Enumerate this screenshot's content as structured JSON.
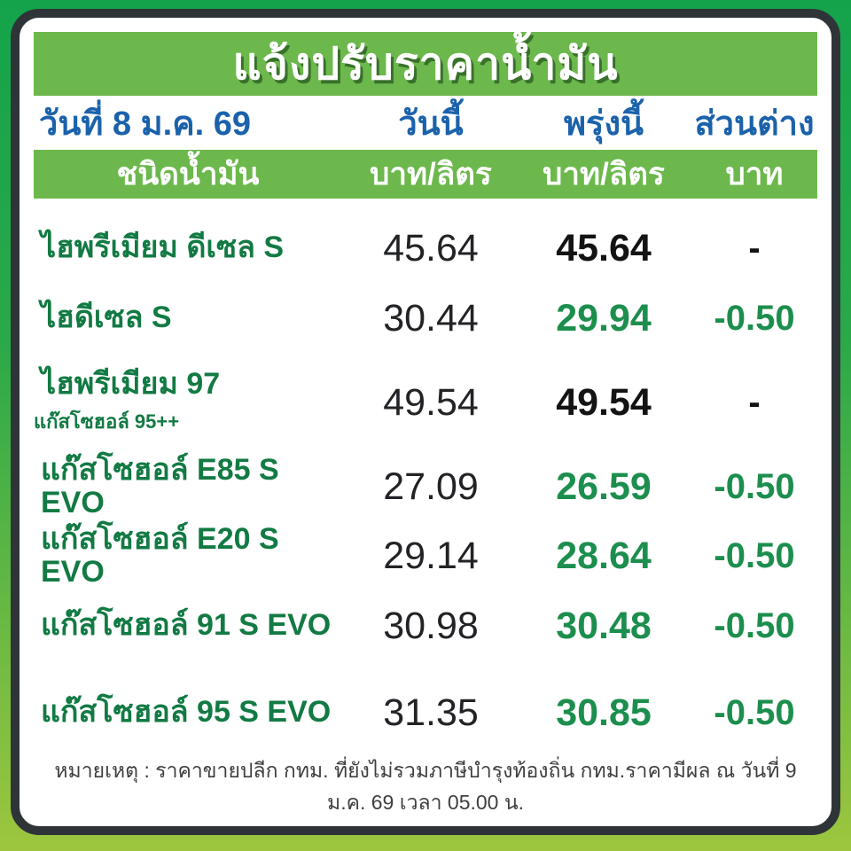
{
  "header": {
    "title": "แจ้งปรับราคาน้ำมัน",
    "date_label": "วันที่ 8 ม.ค. 69",
    "col_today": "วันนี้",
    "col_tomorrow": "พรุ่งนี้",
    "col_diff": "ส่วนต่าง"
  },
  "subheader": {
    "fuel_type": "ชนิดน้ำมัน",
    "unit_today": "บาท/ลิตร",
    "unit_tomorrow": "บาท/ลิตร",
    "unit_diff": "บาท"
  },
  "table": {
    "rows": [
      {
        "name": "ไฮพรีเมียม ดีเซล S",
        "today": "45.64",
        "tomorrow": "45.64",
        "diff": "-",
        "changed": false
      },
      {
        "name": "ไฮดีเซล S",
        "today": "30.44",
        "tomorrow": "29.94",
        "diff": "-0.50",
        "changed": true
      },
      {
        "name": "ไฮพรีเมียม 97",
        "sub": "แก๊สโซฮอล์ 95++",
        "today": "49.54",
        "tomorrow": "49.54",
        "diff": "-",
        "changed": false
      },
      {
        "name": "แก๊สโซฮอล์ E85 S EVO",
        "today": "27.09",
        "tomorrow": "26.59",
        "diff": "-0.50",
        "changed": true
      },
      {
        "name": "แก๊สโซฮอล์ E20 S EVO",
        "today": "29.14",
        "tomorrow": "28.64",
        "diff": "-0.50",
        "changed": true
      },
      {
        "name": "แก๊สโซฮอล์ 91 S EVO",
        "today": "30.98",
        "tomorrow": "30.48",
        "diff": "-0.50",
        "changed": true
      },
      {
        "name": "แก๊สโซฮอล์ 95 S EVO",
        "today": "31.35",
        "tomorrow": "30.85",
        "diff": "-0.50",
        "changed": true
      }
    ]
  },
  "footnote": "หมายเหตุ :  ราคาขายปลีก กทม. ที่ยังไม่รวมภาษีบำรุงท้องถิ่น  กทม.ราคามีผล ณ วันที่ 9 ม.ค. 69 เวลา 05.00 น.",
  "colors": {
    "background_top": "#14a34b",
    "background_bottom": "#9dc63e",
    "card_border": "#2f3438",
    "banner_green": "#6cb84c",
    "title_shadow_green": "#39702b",
    "header_blue": "#1b62ab",
    "fuel_name_green": "#127a43",
    "changed_price_green": "#1c8e4d",
    "number_black": "#131313",
    "footnote_gray": "#3f3f3f"
  }
}
